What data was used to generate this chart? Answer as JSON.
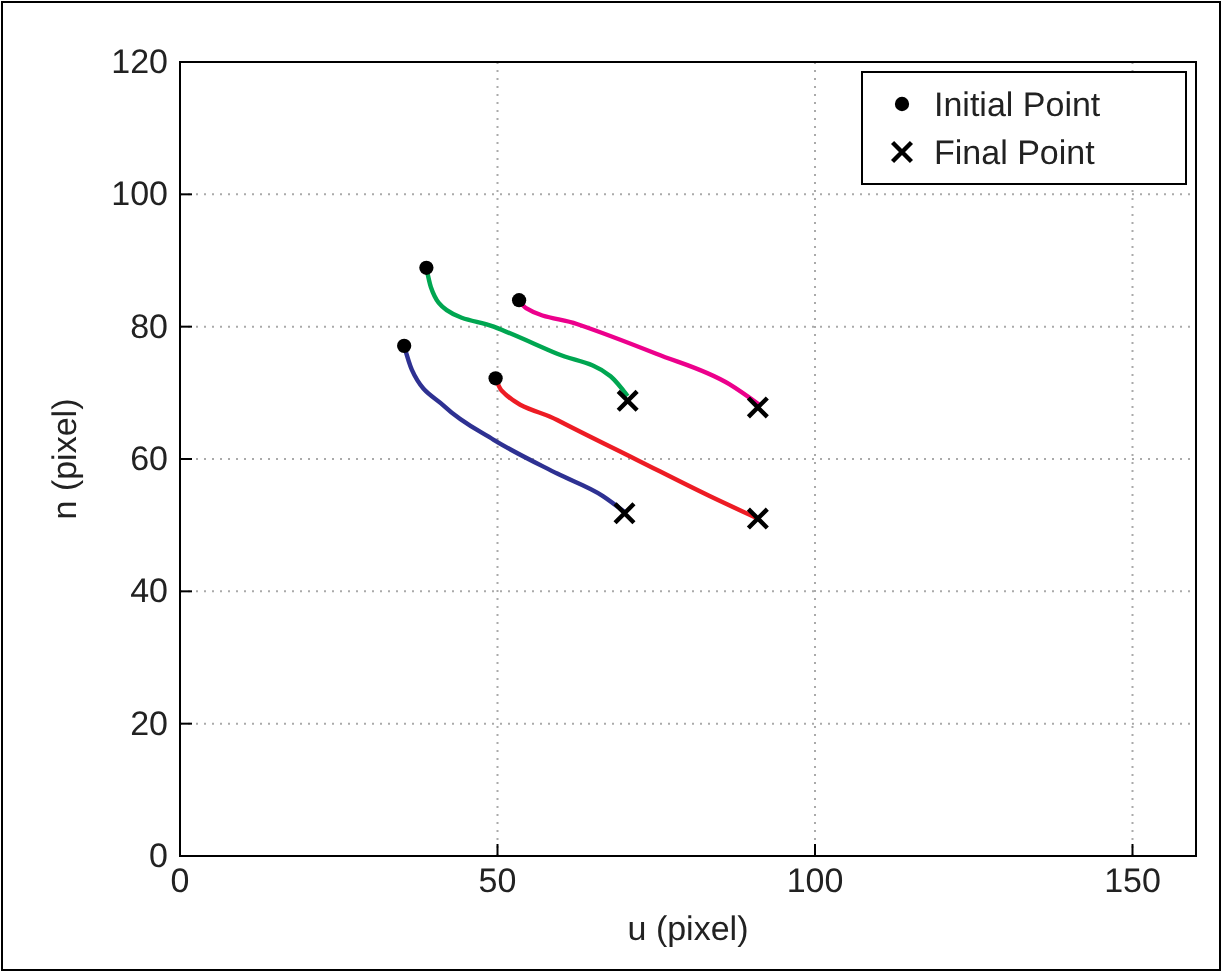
{
  "chart_data": {
    "type": "line",
    "xlabel": "u (pixel)",
    "ylabel": "n (pixel)",
    "xlim": [
      0,
      160
    ],
    "ylim": [
      0,
      120
    ],
    "xticks": [
      0,
      50,
      100,
      150
    ],
    "yticks": [
      0,
      20,
      40,
      60,
      80,
      100,
      120
    ],
    "grid": true,
    "legend": "top right",
    "line_style": "solid",
    "series": [
      {
        "color": "#00a651",
        "marker": "none",
        "x": [
          38.8,
          39.5,
          42,
          49.4,
          59.4,
          67.8,
          70.5
        ],
        "values": [
          88.9,
          86,
          82.5,
          80,
          75.9,
          72.5,
          69.5
        ]
      },
      {
        "color": "#ec008c",
        "marker": "none",
        "x": [
          53.4,
          54.5,
          62.5,
          75,
          86.5,
          91.5
        ],
        "values": [
          84,
          82.8,
          80.4,
          75.9,
          71.3,
          68
        ]
      },
      {
        "color": "#2e3192",
        "marker": "none",
        "x": [
          35.3,
          36.5,
          41.6,
          49.4,
          59.4,
          66.6,
          70
        ],
        "values": [
          77.1,
          73.5,
          68,
          62.9,
          57.8,
          54.4,
          52
        ]
      },
      {
        "color": "#ed1c24",
        "marker": "none",
        "x": [
          49.7,
          50.6,
          59.4,
          71.9,
          83.4,
          91
        ],
        "values": [
          72.2,
          70.4,
          65.9,
          59.9,
          54.4,
          51
        ]
      },
      {
        "type": "scatter",
        "name": "Initial Point",
        "color": "#000000",
        "marker": "circle",
        "x": [
          38.8,
          53.4,
          35.3,
          49.7
        ],
        "values": [
          88.9,
          84,
          77.1,
          72.2
        ]
      },
      {
        "type": "scatter",
        "name": "Final Point",
        "color": "#000000",
        "marker": "cross",
        "x": [
          70.5,
          91,
          70,
          91
        ],
        "values": [
          68.8,
          67.8,
          51.8,
          51
        ]
      }
    ]
  }
}
